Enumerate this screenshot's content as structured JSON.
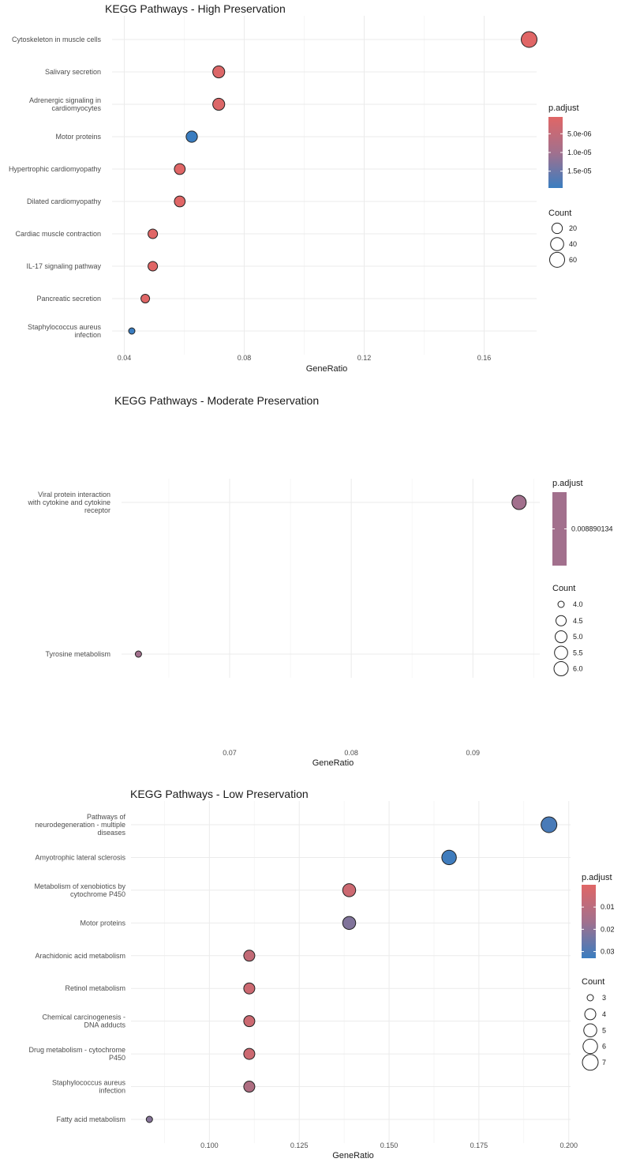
{
  "chart_data": [
    {
      "type": "scatter",
      "title": "KEGG Pathways - High Preservation",
      "xlabel": "GeneRatio",
      "ylabel": "",
      "xlim": [
        0.0375,
        0.1775
      ],
      "xticks": [
        0.04,
        0.08,
        0.12,
        0.16
      ],
      "xtick_labels": [
        "0.04",
        "0.08",
        "0.12",
        "0.16"
      ],
      "categories": [
        "Cytoskeleton in muscle cells",
        "Salivary secretion",
        "Adrenergic signaling in cardiomyocytes",
        "Motor proteins",
        "Hypertrophic cardiomyopathy",
        "Dilated cardiomyopathy",
        "Cardiac muscle contraction",
        "IL-17 signaling pathway",
        "Pancreatic secretion",
        "Staphylococcus aureus infection"
      ],
      "category_lines": [
        [
          "Cytoskeleton in muscle cells"
        ],
        [
          "Salivary secretion"
        ],
        [
          "Adrenergic signaling in",
          "cardiomyocytes"
        ],
        [
          "Motor proteins"
        ],
        [
          "Hypertrophic cardiomyopathy"
        ],
        [
          "Dilated cardiomyopathy"
        ],
        [
          "Cardiac muscle contraction"
        ],
        [
          "IL-17 signaling pathway"
        ],
        [
          "Pancreatic secretion"
        ],
        [
          "Staphylococcus aureus",
          "infection"
        ]
      ],
      "x": [
        0.175,
        0.0715,
        0.0715,
        0.0625,
        0.0585,
        0.0585,
        0.0495,
        0.0495,
        0.047,
        0.0425
      ],
      "count": [
        70,
        30,
        30,
        25,
        22,
        22,
        15,
        15,
        12,
        8
      ],
      "p_adjust": [
        5e-07,
        1e-06,
        1e-06,
        1.95e-05,
        5e-07,
        5e-07,
        5e-07,
        5e-07,
        5e-07,
        1.95e-05
      ],
      "size_range": [
        8,
        70
      ],
      "legend": {
        "color_title": "p.adjust",
        "color_range": [
          5e-07,
          1.95e-05
        ],
        "color_ticks": [
          5e-06,
          1e-05,
          1.5e-05
        ],
        "color_tick_labels": [
          "5.0e-06",
          "1.0e-05",
          "1.5e-05"
        ],
        "size_title": "Count",
        "size_values": [
          20,
          40,
          60
        ],
        "size_labels": [
          "20",
          "40",
          "60"
        ],
        "placement": "right"
      }
    },
    {
      "type": "scatter",
      "title": "KEGG Pathways - Moderate Preservation",
      "xlabel": "GeneRatio",
      "ylabel": "",
      "xlim": [
        0.0615,
        0.0955
      ],
      "xticks": [
        0.07,
        0.08,
        0.09
      ],
      "xtick_labels": [
        "0.07",
        "0.08",
        "0.09"
      ],
      "categories": [
        "Viral protein interaction with cytokine and cytokine receptor",
        "Tyrosine metabolism"
      ],
      "category_lines": [
        [
          "Viral protein interaction",
          "with cytokine and cytokine",
          "receptor"
        ],
        [
          "Tyrosine metabolism"
        ]
      ],
      "x": [
        0.0938,
        0.0625
      ],
      "count": [
        6,
        4
      ],
      "p_adjust": [
        0.008890134,
        0.008890134
      ],
      "size_range": [
        4,
        6
      ],
      "legend": {
        "color_title": "p.adjust",
        "color_range": [
          0.008890134,
          0.008890134
        ],
        "color_ticks": [
          0.008890134
        ],
        "color_tick_labels": [
          "0.008890134"
        ],
        "size_title": "Count",
        "size_values": [
          4.0,
          4.5,
          5.0,
          5.5,
          6.0
        ],
        "size_labels": [
          "4.0",
          "4.5",
          "5.0",
          "5.5",
          "6.0"
        ],
        "placement": "right"
      }
    },
    {
      "type": "scatter",
      "title": "KEGG Pathways - Low Preservation",
      "xlabel": "GeneRatio",
      "ylabel": "",
      "xlim": [
        0.0795,
        0.2005
      ],
      "xticks": [
        0.1,
        0.125,
        0.15,
        0.175,
        0.2
      ],
      "xtick_labels": [
        "0.100",
        "0.125",
        "0.150",
        "0.175",
        "0.200"
      ],
      "categories": [
        "Pathways of neurodegeneration - multiple diseases",
        "Amyotrophic lateral sclerosis",
        "Metabolism of xenobiotics by cytochrome P450",
        "Motor proteins",
        "Arachidonic acid metabolism",
        "Retinol metabolism",
        "Chemical carcinogenesis - DNA adducts",
        "Drug metabolism - cytochrome P450",
        "Staphylococcus aureus infection",
        "Fatty acid metabolism"
      ],
      "category_lines": [
        [
          "Pathways of",
          "neurodegeneration - multiple",
          "diseases"
        ],
        [
          "Amyotrophic lateral sclerosis"
        ],
        [
          "Metabolism of xenobiotics by",
          "cytochrome P450"
        ],
        [
          "Motor proteins"
        ],
        [
          "Arachidonic acid metabolism"
        ],
        [
          "Retinol metabolism"
        ],
        [
          "Chemical carcinogenesis -",
          "DNA adducts"
        ],
        [
          "Drug metabolism - cytochrome",
          "P450"
        ],
        [
          "Staphylococcus aureus",
          "infection"
        ],
        [
          "Fatty acid metabolism"
        ]
      ],
      "x": [
        0.1945,
        0.1667,
        0.1389,
        0.1389,
        0.1111,
        0.1111,
        0.1111,
        0.1111,
        0.1111,
        0.0833
      ],
      "count": [
        7,
        6,
        5,
        5,
        4,
        4,
        4,
        4,
        4,
        3
      ],
      "p_adjust": [
        0.03,
        0.032,
        0.004,
        0.019,
        0.006,
        0.004,
        0.004,
        0.004,
        0.01,
        0.018
      ],
      "size_range": [
        3,
        7
      ],
      "legend": {
        "color_title": "p.adjust",
        "color_range": [
          0.0,
          0.033
        ],
        "color_ticks": [
          0.01,
          0.02,
          0.03
        ],
        "color_tick_labels": [
          "0.01",
          "0.02",
          "0.03"
        ],
        "size_title": "Count",
        "size_values": [
          3,
          4,
          5,
          6,
          7
        ],
        "size_labels": [
          "3",
          "4",
          "5",
          "6",
          "7"
        ],
        "placement": "right"
      }
    }
  ],
  "colors": {
    "low_p": "#e06666",
    "high_p": "#3a7dc0",
    "grid": "#ebebeb"
  }
}
